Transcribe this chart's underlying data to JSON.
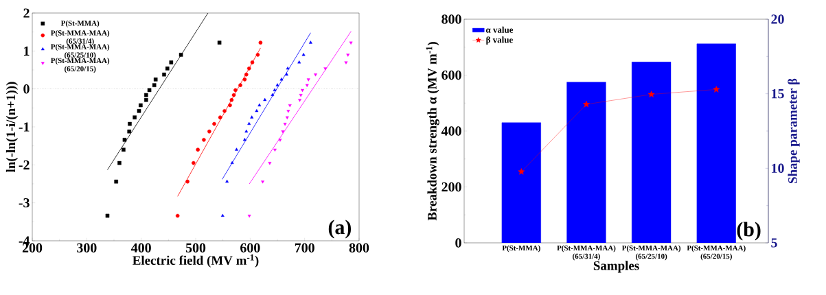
{
  "chart_data": [
    {
      "type": "scatter",
      "xlabel": "Electric field (MV m$^{-1}$)",
      "ylabel": "ln(-ln(1-i/(n+1)))",
      "xlim": [
        200,
        800
      ],
      "xticks": [
        200,
        300,
        400,
        500,
        600,
        700,
        800
      ],
      "ylim": [
        -4,
        2
      ],
      "yticks": [
        -4,
        -3,
        -2,
        -1,
        0,
        1,
        2
      ],
      "legend": "top left",
      "annotations": [
        "(a)"
      ],
      "ref_lines": [
        {
          "axis": "y",
          "value": 0,
          "line_style": "dotted"
        }
      ],
      "series": [
        {
          "name": "P(St-MMA)",
          "color": "#000000",
          "marker": "square",
          "x": [
            338,
            354,
            360,
            367.5,
            369.5,
            378,
            379,
            388,
            396,
            399,
            409,
            409,
            415,
            424,
            426.5,
            442,
            448,
            455,
            473,
            543.6
          ],
          "values": [
            -3.34,
            -2.44,
            -1.95,
            -1.6,
            -1.34,
            -1.12,
            -0.92,
            -0.75,
            -0.58,
            -0.43,
            -0.29,
            -0.16,
            -0.03,
            0.1,
            0.25,
            0.38,
            0.54,
            0.7,
            0.9,
            1.22
          ]
        },
        {
          "name": "P(St-MMA-MAA) (65/31/4)",
          "color": "#ff0000",
          "marker": "circle",
          "x": [
            466.8,
            485,
            496,
            504,
            515,
            525,
            534,
            545,
            553,
            563,
            566,
            570,
            573,
            582,
            590,
            593,
            598,
            604,
            614,
            619
          ],
          "values": [
            -3.34,
            -2.44,
            -1.95,
            -1.6,
            -1.34,
            -1.12,
            -0.92,
            -0.75,
            -0.58,
            -0.43,
            -0.29,
            -0.16,
            -0.03,
            0.1,
            0.25,
            0.38,
            0.54,
            0.7,
            0.9,
            1.22
          ]
        },
        {
          "name": "P(St-MMA-MAA) (65/25/10)",
          "color": "#0000ff",
          "marker": "triangle",
          "x": [
            549.5,
            557.5,
            567,
            575,
            590,
            593,
            598,
            603,
            612,
            617,
            627,
            641,
            645,
            650,
            657.5,
            667,
            669,
            690,
            698,
            711
          ],
          "values": [
            -3.34,
            -2.44,
            -1.95,
            -1.6,
            -1.34,
            -1.12,
            -0.92,
            -0.75,
            -0.58,
            -0.43,
            -0.29,
            -0.16,
            -0.03,
            0.1,
            0.25,
            0.38,
            0.54,
            0.7,
            0.9,
            1.22
          ]
        },
        {
          "name": "P(St-MMA-MAA) (65/20/15)",
          "color": "#ff00ff",
          "marker": "triangle-down",
          "x": [
            598.5,
            623,
            636,
            645.5,
            655,
            660,
            664,
            668,
            670,
            673,
            691,
            693,
            696,
            704.5,
            707,
            720,
            738,
            776,
            779.5,
            785
          ],
          "values": [
            -3.34,
            -2.44,
            -1.95,
            -1.6,
            -1.34,
            -1.12,
            -0.92,
            -0.75,
            -0.58,
            -0.43,
            -0.29,
            -0.16,
            -0.03,
            0.1,
            0.25,
            0.38,
            0.54,
            0.7,
            0.9,
            1.22
          ]
        },
        {
          "type": "line",
          "color": "#000000",
          "x": [
            338,
            522.6
          ],
          "values": [
            -2.13,
            2
          ]
        },
        {
          "type": "line",
          "color": "#ff0000",
          "x": [
            466.8,
            619
          ],
          "values": [
            -2.83,
            1.08
          ]
        },
        {
          "type": "line",
          "color": "#0000ff",
          "x": [
            548.7,
            711
          ],
          "values": [
            -2.38,
            1.48
          ]
        },
        {
          "type": "line",
          "color": "#ff00ff",
          "x": [
            598.5,
            785.3
          ],
          "values": [
            -2.5,
            1.52
          ]
        }
      ]
    },
    {
      "type": "bar",
      "xlabel": "Samples",
      "ylabel": "Breakdown strength α (MV m$^{-1}$)",
      "y2label": "Shape parameter β",
      "categories": [
        "P(St-MMA)",
        "P(St-MMA-MAA) (65/31/4)",
        "P(St-MMA-MAA) (65/25/10)",
        "P(St-MMA-MAA) (65/20/15)"
      ],
      "ylim": [
        0,
        800
      ],
      "yticks": [
        0,
        200,
        400,
        600,
        800
      ],
      "y2lim": [
        5,
        20
      ],
      "y2ticks": [
        5,
        10,
        15,
        20
      ],
      "legend": "top left",
      "annotations": [
        "(b)"
      ],
      "series": [
        {
          "name": "α value",
          "color": "#0000ff",
          "values": [
            430,
            575,
            647,
            712
          ]
        },
        {
          "name": "β value",
          "type": "line",
          "axis": "y2",
          "marker": "star",
          "color": "#ff0000",
          "values": [
            9.77,
            14.29,
            14.96,
            15.29
          ]
        }
      ]
    }
  ]
}
